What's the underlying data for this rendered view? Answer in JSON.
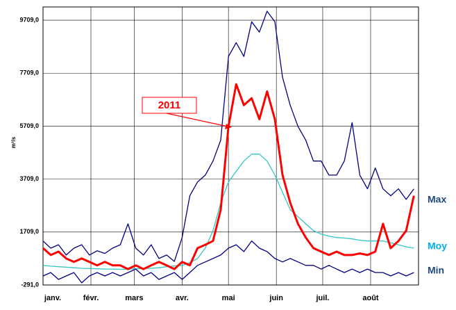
{
  "chart_data": {
    "type": "line",
    "y_label": "m³/s",
    "annotation": "2011",
    "x": [
      0,
      5,
      10,
      15,
      20,
      25,
      30,
      35,
      40,
      45,
      50,
      55,
      60,
      65,
      70,
      75,
      80,
      85,
      90,
      95,
      100,
      105,
      110,
      115,
      120,
      125,
      130,
      135,
      140,
      145,
      150,
      155,
      160,
      165,
      170,
      175,
      180,
      185,
      190,
      195,
      200,
      205,
      210,
      215,
      220,
      225,
      230,
      235,
      240
    ],
    "xlim": [
      0,
      243
    ],
    "xticks": [
      {
        "value": 0,
        "label": "janv."
      },
      {
        "value": 31,
        "label": "févr."
      },
      {
        "value": 59,
        "label": "mars"
      },
      {
        "value": 90,
        "label": "avr."
      },
      {
        "value": 120,
        "label": "mai"
      },
      {
        "value": 151,
        "label": "juin"
      },
      {
        "value": 181,
        "label": "juil."
      },
      {
        "value": 212,
        "label": "août"
      }
    ],
    "ylim": [
      -291,
      10209
    ],
    "yticks": [
      {
        "value": -291,
        "label": "-291,0"
      },
      {
        "value": 1709,
        "label": "1709,0"
      },
      {
        "value": 3709,
        "label": "3709,0"
      },
      {
        "value": 5709,
        "label": "5709,0"
      },
      {
        "value": 7709,
        "label": "7709,0"
      },
      {
        "value": 9709,
        "label": "9709,0"
      }
    ],
    "grid": true,
    "series": [
      {
        "name": "Max",
        "color": "#000080",
        "label_color": "#1f497d",
        "width": 1.3,
        "values": [
          1370,
          1100,
          1230,
          840,
          1100,
          1230,
          840,
          1000,
          900,
          1100,
          1230,
          2020,
          1100,
          840,
          1230,
          710,
          840,
          600,
          1500,
          3080,
          3600,
          3860,
          4390,
          5180,
          8340,
          8860,
          8340,
          9650,
          9260,
          10050,
          9650,
          7550,
          6490,
          5700,
          5180,
          4390,
          4390,
          3860,
          3860,
          4390,
          5840,
          3860,
          3340,
          4130,
          3340,
          3080,
          3340,
          2940,
          3340
        ]
      },
      {
        "name": "Moy",
        "color": "#33c6c6",
        "label_color": "#00b0f0",
        "width": 1.3,
        "values": [
          450,
          420,
          400,
          380,
          360,
          340,
          330,
          320,
          310,
          310,
          300,
          310,
          320,
          330,
          340,
          360,
          400,
          430,
          450,
          550,
          710,
          1100,
          1760,
          2810,
          3600,
          4000,
          4390,
          4650,
          4650,
          4390,
          3860,
          3210,
          2550,
          2290,
          2020,
          1760,
          1630,
          1550,
          1500,
          1480,
          1450,
          1400,
          1370,
          1370,
          1370,
          1300,
          1230,
          1150,
          1100
        ]
      },
      {
        "name": "Min",
        "color": "#000080",
        "label_color": "#1f497d",
        "width": 1.3,
        "values": [
          50,
          180,
          -80,
          50,
          180,
          -210,
          50,
          180,
          50,
          180,
          50,
          180,
          310,
          50,
          180,
          -80,
          50,
          180,
          -80,
          180,
          450,
          580,
          710,
          840,
          1100,
          1230,
          970,
          1370,
          1100,
          970,
          710,
          580,
          710,
          580,
          450,
          450,
          310,
          450,
          310,
          180,
          310,
          180,
          310,
          180,
          180,
          50,
          180,
          50,
          180
        ]
      },
      {
        "name": "2011",
        "color": "#ff0000",
        "width": 3,
        "values": [
          1100,
          840,
          970,
          710,
          580,
          710,
          580,
          450,
          580,
          450,
          450,
          310,
          450,
          310,
          450,
          580,
          450,
          310,
          580,
          450,
          1100,
          1230,
          1370,
          2550,
          5700,
          7290,
          6500,
          6760,
          5970,
          7020,
          5970,
          3860,
          2810,
          2020,
          1500,
          1100,
          970,
          840,
          970,
          840,
          840,
          900,
          840,
          970,
          2020,
          1100,
          1370,
          1760,
          3080
        ]
      }
    ]
  }
}
